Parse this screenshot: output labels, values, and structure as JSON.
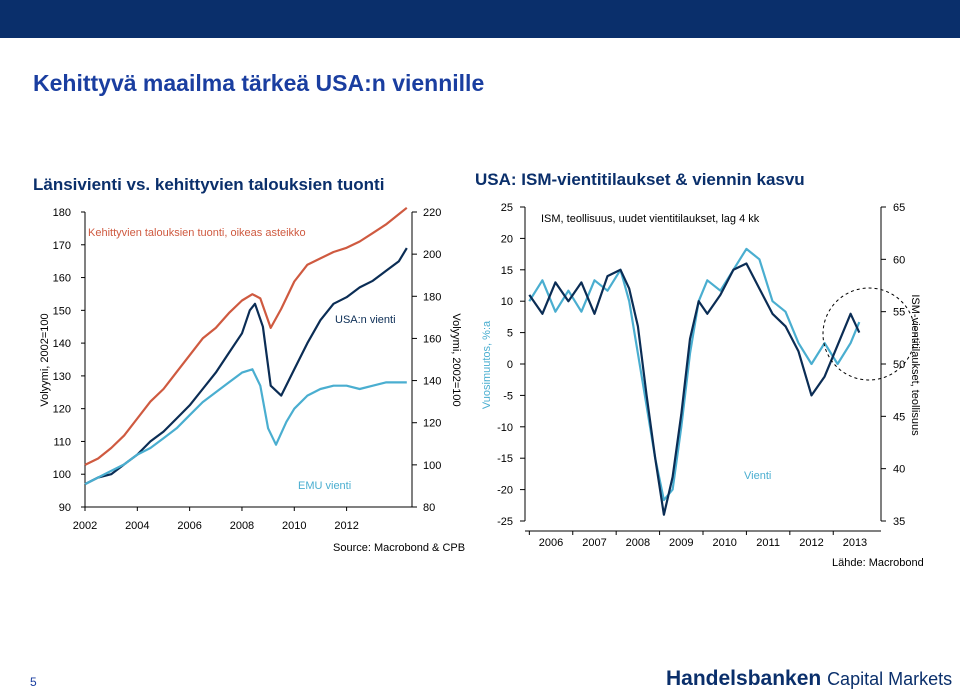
{
  "slide": {
    "title": "Kehittyvä maailma tärkeä USA:n viennille",
    "page_number": "5",
    "brand_name": "Handelsbanken",
    "brand_suffix": "Capital Markets",
    "colors": {
      "header": "#0a2f6b",
      "title": "#1a3ea0"
    }
  },
  "chart_data": [
    {
      "type": "line",
      "title": "Länsivienti vs. kehittyvien talouksien tuonti",
      "ylabel": "Volyymi, 2002=100",
      "y2label": "Volyymi, 2002=100",
      "source": "Source: Macrobond & CPB",
      "ylim": [
        90,
        180
      ],
      "y2lim": [
        80,
        220
      ],
      "xlim": [
        2002,
        2014.5
      ],
      "x_ticks": [
        "2002",
        "2004",
        "2006",
        "2008",
        "2010",
        "2012"
      ],
      "y_ticks": [
        "90",
        "100",
        "110",
        "120",
        "130",
        "140",
        "150",
        "160",
        "170",
        "180"
      ],
      "y2_ticks": [
        "80",
        "100",
        "120",
        "140",
        "160",
        "180",
        "200",
        "220"
      ],
      "grid": false,
      "series": [
        {
          "name": "Kehittyvien talouksien tuonti, oikeas asteikko",
          "color": "#cf5a40",
          "axis": "right",
          "x": [
            2002.0,
            2002.5,
            2003.0,
            2003.5,
            2004.0,
            2004.5,
            2005.0,
            2005.5,
            2006.0,
            2006.5,
            2007.0,
            2007.5,
            2008.0,
            2008.4,
            2008.7,
            2008.9,
            2009.1,
            2009.5,
            2010.0,
            2010.5,
            2011.0,
            2011.5,
            2012.0,
            2012.5,
            2013.0,
            2013.5,
            2014.0,
            2014.3
          ],
          "values": [
            100,
            103,
            108,
            114,
            122,
            130,
            136,
            144,
            152,
            160,
            165,
            172,
            178,
            181,
            179,
            172,
            165,
            174,
            187,
            195,
            198,
            201,
            203,
            206,
            210,
            214,
            219,
            222
          ]
        },
        {
          "name": "USA:n vienti",
          "color": "#0b2d55",
          "axis": "left",
          "x": [
            2002.0,
            2002.5,
            2003.0,
            2003.5,
            2004.0,
            2004.5,
            2005.0,
            2005.5,
            2006.0,
            2006.5,
            2007.0,
            2007.5,
            2008.0,
            2008.3,
            2008.5,
            2008.8,
            2009.1,
            2009.5,
            2010.0,
            2010.5,
            2011.0,
            2011.5,
            2012.0,
            2012.5,
            2013.0,
            2013.5,
            2014.0,
            2014.3
          ],
          "values": [
            97,
            99,
            100,
            103,
            106,
            110,
            113,
            117,
            121,
            126,
            131,
            137,
            143,
            150,
            152,
            145,
            127,
            124,
            132,
            140,
            147,
            152,
            154,
            157,
            159,
            162,
            165,
            169
          ]
        },
        {
          "name": "EMU vienti",
          "color": "#4aaed0",
          "axis": "left",
          "x": [
            2002.0,
            2002.5,
            2003.0,
            2003.5,
            2004.0,
            2004.5,
            2005.0,
            2005.5,
            2006.0,
            2006.5,
            2007.0,
            2007.5,
            2008.0,
            2008.4,
            2008.7,
            2009.0,
            2009.3,
            2009.7,
            2010.0,
            2010.5,
            2011.0,
            2011.5,
            2012.0,
            2012.5,
            2013.0,
            2013.5,
            2014.0,
            2014.3
          ],
          "values": [
            97,
            99,
            101,
            103,
            106,
            108,
            111,
            114,
            118,
            122,
            125,
            128,
            131,
            132,
            127,
            114,
            109,
            116,
            120,
            124,
            126,
            127,
            127,
            126,
            127,
            128,
            128,
            128
          ]
        }
      ],
      "labels": {
        "import": "Kehittyvien talouksien tuonti, oikeas asteikko",
        "usa": "USA:n vienti",
        "emu": "EMU vienti"
      }
    },
    {
      "type": "line",
      "title": "USA: ISM-vientitilaukset & viennin kasvu",
      "ylabel": "Vuosimuutos, %:a",
      "y2label": "ISM-vientitilaukset, teollisuus",
      "source": "Lähde: Macrobond",
      "ylim": [
        -25,
        25
      ],
      "y2lim": [
        35,
        65
      ],
      "xlim": [
        2005.9,
        2014.1
      ],
      "x_ticks": [
        "2006",
        "2007",
        "2008",
        "2009",
        "2010",
        "2011",
        "2012",
        "2013"
      ],
      "y_ticks": [
        "-25",
        "-20",
        "-15",
        "-10",
        "-5",
        "0",
        "5",
        "10",
        "15",
        "20",
        "25"
      ],
      "y2_ticks": [
        "35",
        "40",
        "45",
        "50",
        "55",
        "60",
        "65"
      ],
      "grid": false,
      "series": [
        {
          "name": "ISM, teollisuus, uudet vientitilaukset, lag 4 kk",
          "color": "#4aaed0",
          "axis": "right",
          "x": [
            2006.0,
            2006.3,
            2006.6,
            2006.9,
            2007.2,
            2007.5,
            2007.8,
            2008.1,
            2008.3,
            2008.5,
            2008.7,
            2008.9,
            2009.1,
            2009.3,
            2009.5,
            2009.7,
            2009.9,
            2010.1,
            2010.4,
            2010.7,
            2011.0,
            2011.3,
            2011.6,
            2011.9,
            2012.2,
            2012.5,
            2012.8,
            2013.1,
            2013.4,
            2013.6
          ],
          "values": [
            56,
            58,
            55,
            57,
            55,
            58,
            57,
            59,
            56,
            51,
            46,
            41,
            37,
            38,
            44,
            51,
            56,
            58,
            57,
            59,
            61,
            60,
            56,
            55,
            52,
            50,
            52,
            50,
            52,
            54
          ]
        },
        {
          "name": "Vienti",
          "color": "#0b2d55",
          "axis": "left",
          "x": [
            2006.0,
            2006.3,
            2006.6,
            2006.9,
            2007.2,
            2007.5,
            2007.8,
            2008.1,
            2008.3,
            2008.5,
            2008.7,
            2008.9,
            2009.1,
            2009.3,
            2009.5,
            2009.7,
            2009.9,
            2010.1,
            2010.4,
            2010.7,
            2011.0,
            2011.3,
            2011.6,
            2011.9,
            2012.2,
            2012.5,
            2012.8,
            2013.1,
            2013.4,
            2013.6
          ],
          "values": [
            11,
            8,
            13,
            10,
            13,
            8,
            14,
            15,
            12,
            6,
            -5,
            -15,
            -24,
            -18,
            -8,
            4,
            10,
            8,
            11,
            15,
            16,
            12,
            8,
            6,
            2,
            -5,
            -2,
            3,
            8,
            5
          ]
        }
      ],
      "labels": {
        "ism": "ISM, teollisuus, uudet vientitilaukset, lag 4 kk",
        "export": "Vienti"
      }
    }
  ]
}
